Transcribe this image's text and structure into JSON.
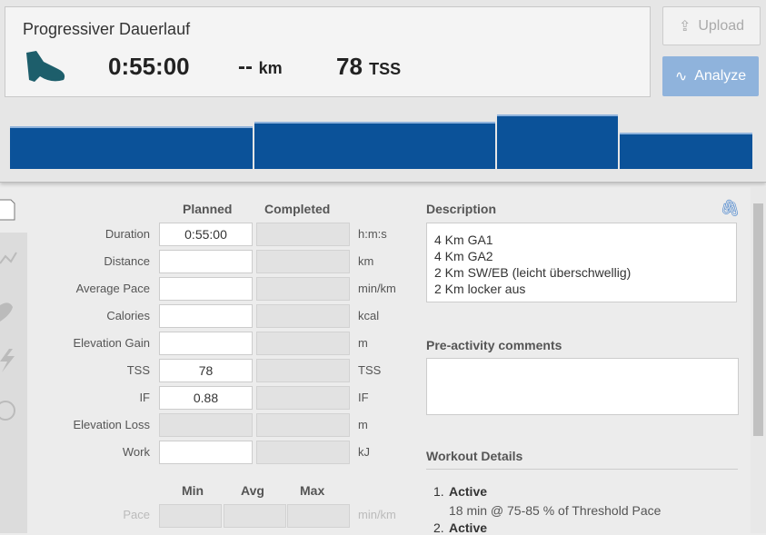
{
  "header": {
    "title": "Progressiver Dauerlauf",
    "duration": "0:55:00",
    "distance": "--",
    "distance_unit": "km",
    "tss": "78",
    "tss_unit": "TSS"
  },
  "buttons": {
    "upload": "Upload",
    "analyze": "Analyze"
  },
  "form": {
    "planned_header": "Planned",
    "completed_header": "Completed",
    "rows": [
      {
        "label": "Duration",
        "planned": "0:55:00",
        "unit": "h:m:s"
      },
      {
        "label": "Distance",
        "unit": "km"
      },
      {
        "label": "Average Pace",
        "unit": "min/km"
      },
      {
        "label": "Calories",
        "unit": "kcal"
      },
      {
        "label": "Elevation Gain",
        "unit": "m"
      },
      {
        "label": "TSS",
        "planned": "78",
        "unit": "TSS"
      },
      {
        "label": "IF",
        "planned": "0.88",
        "unit": "IF"
      },
      {
        "label": "Elevation Loss",
        "unit": "m"
      },
      {
        "label": "Work",
        "unit": "kJ"
      }
    ],
    "min_header": "Min",
    "avg_header": "Avg",
    "max_header": "Max",
    "pace": {
      "label": "Pace",
      "unit": "min/km"
    }
  },
  "description": {
    "title": "Description",
    "lines": [
      "4 Km GA1",
      "4 Km GA2",
      "2 Km SW/EB (leicht überschwellig)",
      "2 Km locker aus"
    ]
  },
  "pre_activity": {
    "title": "Pre-activity comments"
  },
  "workout_details": {
    "title": "Workout Details",
    "steps": [
      {
        "number": "1.",
        "name": "Active",
        "detail": "18 min @ 75-85 % of Threshold Pace"
      },
      {
        "number": "2.",
        "name": "Active"
      }
    ]
  }
}
